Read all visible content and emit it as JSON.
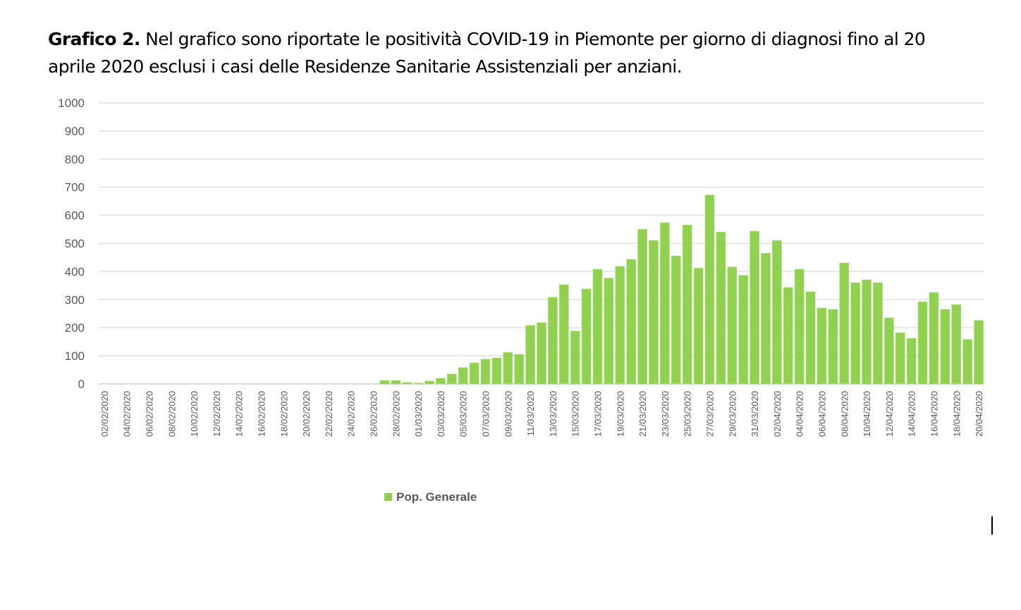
{
  "caption": {
    "label": "Grafico 2.",
    "text": " Nel grafico sono riportate le positività COVID-19 in Piemonte per giorno di diagnosi fino al 20 aprile 2020 esclusi i casi delle Residenze Sanitarie Assistenziali per anziani."
  },
  "chart_data": {
    "type": "bar",
    "title": "",
    "xlabel": "",
    "ylabel": "",
    "ylim": [
      0,
      1000
    ],
    "yticks": [
      0,
      100,
      200,
      300,
      400,
      500,
      600,
      700,
      800,
      900,
      1000
    ],
    "grid": true,
    "legend_position": "bottom",
    "bar_color": "#92d050",
    "x_tick_labels": [
      "02/02/2020",
      "04/02/2020",
      "06/02/2020",
      "08/02/2020",
      "10/02/2020",
      "12/02/2020",
      "14/02/2020",
      "16/02/2020",
      "18/02/2020",
      "20/02/2020",
      "22/02/2020",
      "24/02/2020",
      "26/02/2020",
      "28/02/2020",
      "01/03/2020",
      "03/03/2020",
      "05/03/2020",
      "07/03/2020",
      "09/03/2020",
      "11/03/2020",
      "13/03/2020",
      "15/03/2020",
      "17/03/2020",
      "19/03/2020",
      "21/03/2020",
      "23/03/2020",
      "25/03/2020",
      "27/03/2020",
      "29/03/2020",
      "31/03/2020",
      "02/04/2020",
      "04/04/2020",
      "06/04/2020",
      "08/04/2020",
      "10/04/2020",
      "12/04/2020",
      "14/04/2020",
      "16/04/2020",
      "18/04/2020",
      "20/04/2020"
    ],
    "series": [
      {
        "name": "Pop. Generale",
        "values": [
          0,
          0,
          0,
          0,
          0,
          0,
          0,
          0,
          0,
          0,
          0,
          0,
          0,
          0,
          0,
          0,
          0,
          0,
          0,
          0,
          0,
          0,
          0,
          0,
          0,
          12,
          12,
          5,
          3,
          10,
          20,
          35,
          58,
          75,
          88,
          92,
          112,
          105,
          208,
          218,
          308,
          353,
          188,
          338,
          408,
          376,
          418,
          443,
          550,
          510,
          573,
          455,
          565,
          412,
          672,
          540,
          416,
          386,
          543,
          465,
          510,
          343,
          408,
          328,
          270,
          265,
          430,
          360,
          370,
          360,
          235,
          182,
          162,
          292,
          325,
          265,
          282,
          158,
          226
        ]
      }
    ]
  }
}
